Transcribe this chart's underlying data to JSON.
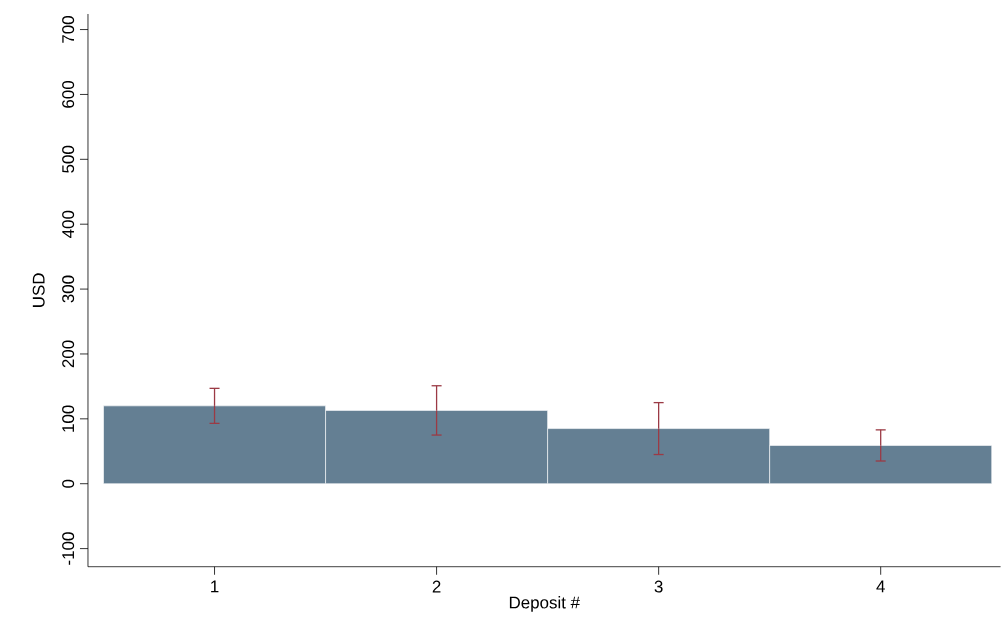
{
  "chart_data": {
    "type": "bar",
    "xlabel": "Deposit #",
    "ylabel": "USD",
    "categories": [
      "1",
      "2",
      "3",
      "4"
    ],
    "values": [
      120,
      113,
      85,
      59
    ],
    "errors": [
      27,
      38,
      40,
      24
    ],
    "color": "#647f93",
    "ylim": [
      -128,
      724
    ],
    "yticks": [
      -100,
      0,
      100,
      200,
      300,
      400,
      500,
      600,
      700
    ],
    "grid": false
  }
}
